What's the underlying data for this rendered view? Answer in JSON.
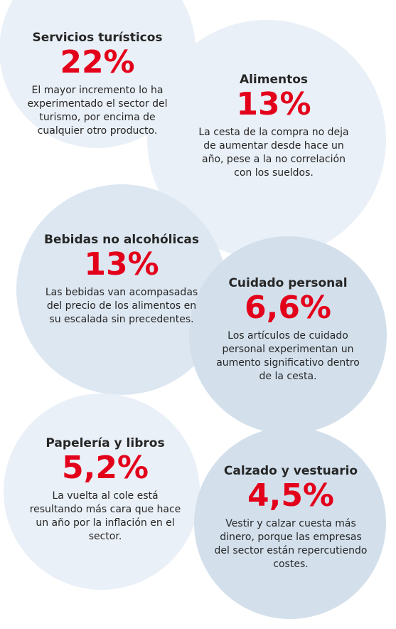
{
  "colors": {
    "accent": "#e3001b",
    "text": "#262626",
    "circle_light": "#eaf0f7",
    "circle_mid": "#dde7f1",
    "circle_dark": "#d3e0ec"
  },
  "cards": [
    {
      "title": "Servicios turísticos",
      "value": "22%",
      "description": "El mayor incremento lo ha experimentado el sector del turismo, por encima de cualquier otro producto."
    },
    {
      "title": "Alimentos",
      "value": "13%",
      "description": "La cesta de la compra no deja de aumentar desde hace un año, pese a la no correlación con los sueldos."
    },
    {
      "title": "Bebidas no alcohólicas",
      "value": "13%",
      "description": "Las bebidas van acompasadas del precio de los alimentos en su escalada sin precedentes."
    },
    {
      "title": "Cuidado personal",
      "value": "6,6%",
      "description": "Los artículos de cuidado personal experimentan un aumento significativo dentro de la cesta."
    },
    {
      "title": "Papelería y libros",
      "value": "5,2%",
      "description": "La vuelta al cole está resultando más cara que hace un año por la inflación en el sector."
    },
    {
      "title": "Calzado y vestuario",
      "value": "4,5%",
      "description": "Vestir y calzar cuesta más dinero, porque las empresas del sector están repercutiendo costes."
    }
  ]
}
